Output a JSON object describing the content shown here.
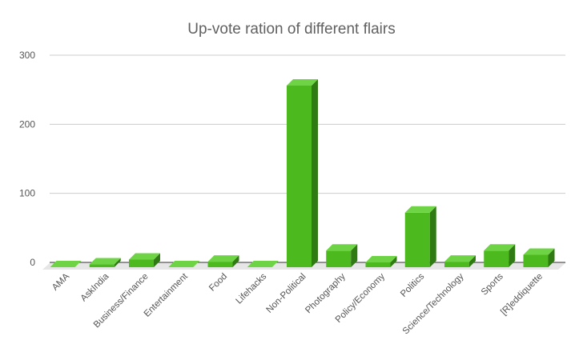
{
  "chart_data": {
    "type": "bar",
    "title": "Up-vote ration of different flairs",
    "xlabel": "",
    "ylabel": "",
    "ylim": [
      0,
      300
    ],
    "yticks": [
      "0",
      "100",
      "200",
      "300"
    ],
    "categories": [
      "AMA",
      "AskIndia",
      "Business/Finance",
      "Entertainment",
      "Food",
      "Lifehacks",
      "Non-Political",
      "Photography",
      "Policy/Economy",
      "Politics",
      "Science/Technology",
      "Sports",
      "[R]eddiquette"
    ],
    "values": [
      0,
      4,
      11,
      0,
      8,
      0,
      263,
      24,
      7,
      79,
      8,
      24,
      18
    ],
    "grid": true,
    "legend": "none",
    "colors": {
      "front": "#4cba1e",
      "top": "#6fd445",
      "side": "#2f7a12",
      "floor": "#e6e6e6",
      "grid": "#cccccc",
      "baseline": "#333333"
    }
  }
}
